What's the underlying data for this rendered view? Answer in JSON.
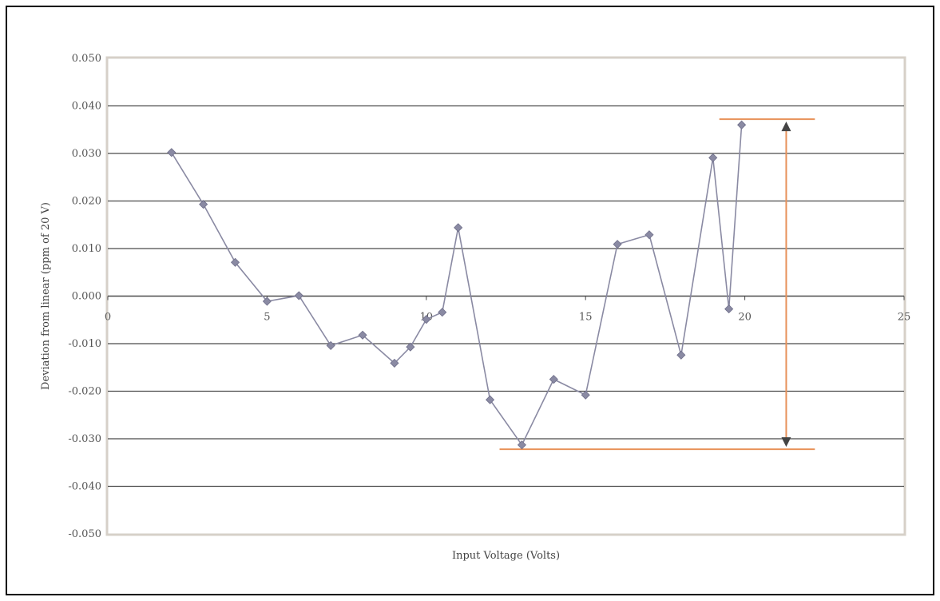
{
  "chart_data": {
    "type": "line",
    "title": "",
    "xlabel": "Input Voltage (Volts)",
    "ylabel": "Deviation from linear (ppm of 20 V)",
    "xlim": [
      0,
      25
    ],
    "ylim": [
      -0.05,
      0.05
    ],
    "x_ticks": [
      0,
      5,
      10,
      15,
      20,
      25
    ],
    "x_tick_labels": [
      "0",
      "5",
      "10",
      "15",
      "20",
      "25"
    ],
    "y_ticks": [
      0.05,
      0.04,
      0.03,
      0.02,
      0.01,
      0,
      -0.01,
      -0.02,
      -0.03,
      -0.04,
      -0.05
    ],
    "y_tick_labels": [
      "0.050",
      "0.040",
      "0.030",
      "0.020",
      "0.010",
      "0.000",
      "-0.010",
      "-0.020",
      "-0.030",
      "-0.040",
      "-0.050"
    ],
    "grid": "horizontal",
    "legend": "none",
    "series": [
      {
        "color": "#8a8aa3",
        "marker": "diamond",
        "points": [
          {
            "x": 2,
            "y": 0.0302
          },
          {
            "x": 3,
            "y": 0.0193
          },
          {
            "x": 4,
            "y": 0.0071
          },
          {
            "x": 5,
            "y": -0.0011
          },
          {
            "x": 6,
            "y": 0.0001
          },
          {
            "x": 7,
            "y": -0.0104
          },
          {
            "x": 8,
            "y": -0.0082
          },
          {
            "x": 9,
            "y": -0.0141
          },
          {
            "x": 9.5,
            "y": -0.0107
          },
          {
            "x": 10,
            "y": -0.0049
          },
          {
            "x": 10.5,
            "y": -0.0034
          },
          {
            "x": 11,
            "y": 0.0144
          },
          {
            "x": 12,
            "y": -0.0218
          },
          {
            "x": 13,
            "y": -0.0313
          },
          {
            "x": 14,
            "y": -0.0175
          },
          {
            "x": 15,
            "y": -0.0208
          },
          {
            "x": 16,
            "y": 0.0109
          },
          {
            "x": 17,
            "y": 0.0129
          },
          {
            "x": 18,
            "y": -0.0124
          },
          {
            "x": 19,
            "y": 0.0291
          },
          {
            "x": 19.5,
            "y": -0.0027
          },
          {
            "x": 19.9,
            "y": 0.036
          }
        ]
      }
    ],
    "annotations": {
      "color": "#e8925a",
      "arrow_color": "#444444",
      "upper_line": {
        "x_start": 19.2,
        "x_end": 22.2,
        "y": 0.0372
      },
      "lower_line": {
        "x_start": 12.3,
        "x_end": 22.2,
        "y": -0.0322
      },
      "span_arrow": {
        "x": 21.3,
        "y_top": 0.0372,
        "y_bottom": -0.0322
      }
    }
  }
}
